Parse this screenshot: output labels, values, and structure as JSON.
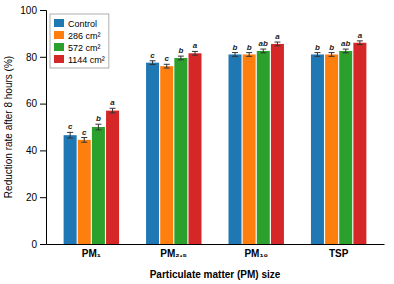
{
  "chart_data": {
    "type": "bar",
    "categories": [
      "PM₁",
      "PM₂.₅",
      "PM₁₀",
      "TSP"
    ],
    "series": [
      {
        "name": "Control",
        "values": [
          46.5,
          77.5,
          81.0,
          81.0
        ],
        "errors": [
          1.2,
          0.8,
          0.8,
          0.8
        ],
        "annotations": [
          "c",
          "c",
          "b",
          "b"
        ]
      },
      {
        "name": "286 cm²",
        "values": [
          44.5,
          76.0,
          81.0,
          81.0
        ],
        "errors": [
          1.0,
          0.8,
          0.8,
          0.8
        ],
        "annotations": [
          "c",
          "c",
          "b",
          "b"
        ]
      },
      {
        "name": "572 cm²",
        "values": [
          50.0,
          79.5,
          82.5,
          82.5
        ],
        "errors": [
          1.2,
          0.8,
          0.8,
          0.8
        ],
        "annotations": [
          "b",
          "b",
          "ab",
          "ab"
        ]
      },
      {
        "name": "1144 cm²",
        "values": [
          57.0,
          81.5,
          85.5,
          86.0
        ],
        "errors": [
          1.0,
          0.8,
          0.8,
          0.8
        ],
        "annotations": [
          "a",
          "a",
          "a",
          "a"
        ]
      }
    ],
    "y_label": "Reduction rate after 8 hours (%)",
    "x_label": "Particulate matter (PM) size",
    "ylim": [
      0,
      100
    ],
    "yticks": [
      0,
      20,
      40,
      60,
      80,
      100
    ],
    "legend": "upper left"
  }
}
